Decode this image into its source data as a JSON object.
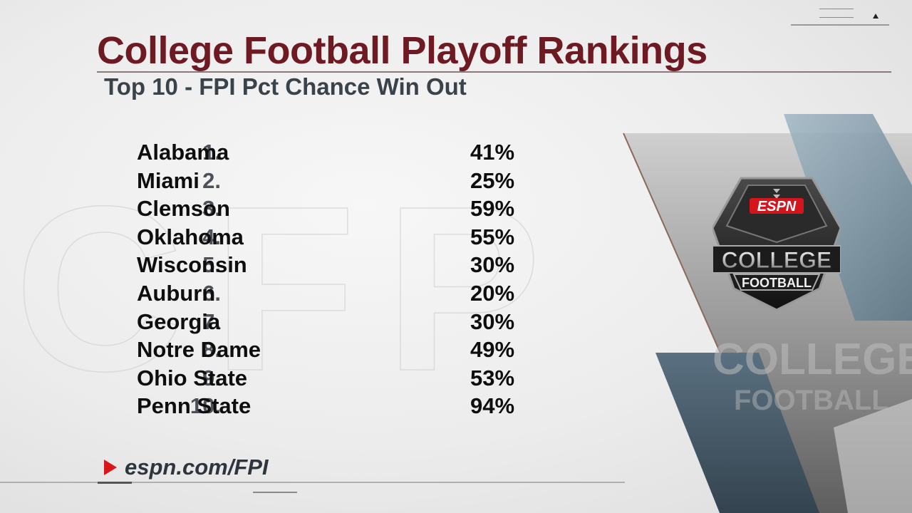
{
  "header": {
    "title": "College Football Playoff Rankings",
    "subtitle": "Top 10 - FPI Pct Chance Win Out"
  },
  "rankings": [
    {
      "rank": "1.",
      "team": "Alabama",
      "pct": "41%"
    },
    {
      "rank": "2.",
      "team": "Miami",
      "pct": "25%"
    },
    {
      "rank": "3.",
      "team": "Clemson",
      "pct": "59%"
    },
    {
      "rank": "4.",
      "team": "Oklahoma",
      "pct": "55%"
    },
    {
      "rank": "5.",
      "team": "Wisconsin",
      "pct": "30%"
    },
    {
      "rank": "6.",
      "team": "Auburn",
      "pct": "20%"
    },
    {
      "rank": "7.",
      "team": "Georgia",
      "pct": "30%"
    },
    {
      "rank": "8.",
      "team": "Notre Dame",
      "pct": "49%"
    },
    {
      "rank": "9.",
      "team": "Ohio State",
      "pct": "53%"
    },
    {
      "rank": "10.",
      "team": "Penn State",
      "pct": "94%"
    }
  ],
  "footer": {
    "url": "espn.com/FPI",
    "icon": "play-arrow-icon"
  },
  "logo": {
    "brand": "ESPN",
    "line1": "COLLEGE",
    "line2": "FOOTBALL",
    "watermark": "COLLEGE FOOTBALL"
  },
  "colors": {
    "title": "#6e1a22",
    "accent_red": "#d81818",
    "panel_blue": "#5a7484"
  }
}
